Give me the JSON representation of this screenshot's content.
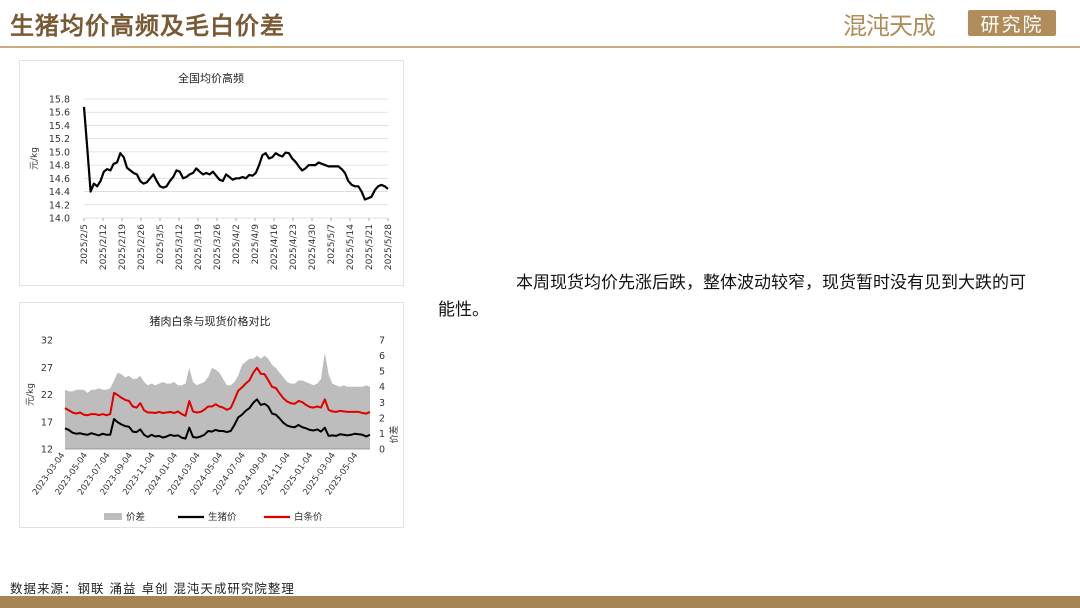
{
  "page": {
    "title": "生猪均价高频及毛白价差",
    "logo_text": "混沌天成",
    "logo_box": "研究院",
    "description": "本周现货均价先涨后跌，整体波动较窄，现货暂时没有见到大跌的可能性。",
    "source": "数据来源：钢联 涌益 卓创 混沌天成研究院整理",
    "colors": {
      "brand": "#a78453",
      "title": "#7a5a35",
      "spread": "#bdbdbd",
      "hog": "#000000",
      "carcass": "#e00000"
    }
  },
  "chart_data": [
    {
      "type": "line",
      "title": "全国均价高频",
      "ylabel": "元/kg",
      "ylim": [
        14.0,
        15.8
      ],
      "yticks": [
        "15.8",
        "15.6",
        "15.4",
        "15.2",
        "15.0",
        "14.8",
        "14.6",
        "14.4",
        "14.2",
        "14.0"
      ],
      "x_tick_labels": [
        "2025/2/5",
        "2025/2/12",
        "2025/2/19",
        "2025/2/26",
        "2025/3/5",
        "2025/3/12",
        "2025/3/19",
        "2025/3/26",
        "2025/4/2",
        "2025/4/9",
        "2025/4/16",
        "2025/4/23",
        "2025/4/30",
        "2025/5/7",
        "2025/5/14",
        "2025/5/21",
        "2025/5/28"
      ],
      "grid": true,
      "legend": "none",
      "series": [
        {
          "color": "#000000",
          "values": [
            15.68,
            15.05,
            14.4,
            14.52,
            14.48,
            14.56,
            14.7,
            14.74,
            14.72,
            14.82,
            14.84,
            14.98,
            14.92,
            14.76,
            14.72,
            14.68,
            14.66,
            14.56,
            14.52,
            14.54,
            14.6,
            14.66,
            14.56,
            14.48,
            14.46,
            14.48,
            14.56,
            14.62,
            14.72,
            14.7,
            14.6,
            14.62,
            14.66,
            14.68,
            14.75,
            14.7,
            14.66,
            14.68,
            14.66,
            14.7,
            14.64,
            14.58,
            14.56,
            14.66,
            14.62,
            14.58,
            14.6,
            14.6,
            14.62,
            14.6,
            14.65,
            14.64,
            14.68,
            14.8,
            14.95,
            14.98,
            14.9,
            14.92,
            14.98,
            14.95,
            14.93,
            14.99,
            14.98,
            14.9,
            14.85,
            14.78,
            14.72,
            14.75,
            14.8,
            14.8,
            14.8,
            14.84,
            14.82,
            14.8,
            14.78,
            14.78,
            14.78,
            14.78,
            14.74,
            14.68,
            14.56,
            14.5,
            14.48,
            14.48,
            14.4,
            14.28,
            14.3,
            14.32,
            14.42,
            14.48,
            14.5,
            14.48,
            14.44
          ]
        }
      ]
    },
    {
      "type": "area",
      "title": "猪肉白条与现货价格对比",
      "ylabel": "元/kg",
      "y2label": "价差",
      "ylim": [
        12,
        32
      ],
      "y2lim": [
        0,
        7
      ],
      "yticks": [
        "32",
        "27",
        "22",
        "17",
        "12"
      ],
      "y2ticks": [
        "7",
        "6",
        "5",
        "4",
        "3",
        "2",
        "1",
        "0"
      ],
      "x_tick_labels": [
        "2023-03-04",
        "2023-05-04",
        "2023-07-04",
        "2023-09-04",
        "2023-11-04",
        "2024-01-04",
        "2024-03-04",
        "2024-05-04",
        "2024-07-04",
        "2024-09-04",
        "2024-11-04",
        "2025-01-04",
        "2025-03-04",
        "2025-05-04"
      ],
      "legend": "bottom",
      "series": [
        {
          "name": "价差",
          "axis": "right",
          "color": "#bdbdbd",
          "values": [
            3.8,
            3.7,
            3.7,
            3.8,
            3.8,
            3.8,
            3.6,
            3.8,
            3.8,
            3.9,
            3.8,
            3.8,
            3.9,
            4.4,
            4.9,
            4.8,
            4.6,
            4.7,
            4.5,
            4.5,
            4.7,
            4.3,
            4.1,
            4.2,
            4.1,
            4.2,
            4.3,
            4.2,
            4.2,
            4.3,
            4.1,
            4.1,
            4.2,
            5.2,
            4.3,
            4.1,
            4.2,
            4.3,
            4.6,
            5.2,
            5.1,
            4.9,
            4.5,
            4.1,
            4.1,
            4.3,
            4.7,
            5.4,
            5.6,
            5.8,
            5.8,
            6.0,
            5.8,
            6.0,
            5.8,
            5.4,
            5.2,
            4.9,
            4.6,
            4.3,
            4.2,
            4.2,
            4.4,
            4.4,
            4.3,
            4.2,
            4.1,
            4.2,
            4.5,
            6.2,
            4.8,
            4.2,
            4.1,
            4.0,
            4.1,
            4.0,
            4.0,
            4.0,
            4.0,
            4.0,
            4.1,
            4.0
          ]
        },
        {
          "name": "生猪价",
          "axis": "left",
          "color": "#000000",
          "values": [
            15.8,
            15.5,
            15.0,
            14.8,
            14.9,
            14.7,
            14.6,
            14.9,
            14.7,
            14.5,
            14.8,
            14.6,
            14.6,
            17.5,
            16.9,
            16.5,
            16.2,
            16.1,
            15.2,
            15.1,
            15.6,
            14.6,
            14.2,
            14.6,
            14.3,
            14.4,
            14.1,
            14.3,
            14.6,
            14.4,
            14.5,
            14.1,
            13.9,
            15.9,
            14.2,
            14.1,
            14.3,
            14.6,
            15.3,
            15.2,
            15.5,
            15.3,
            15.3,
            15.1,
            15.3,
            16.4,
            17.8,
            18.3,
            19.0,
            19.5,
            20.5,
            21.1,
            20.1,
            20.3,
            19.8,
            18.5,
            18.3,
            17.6,
            16.8,
            16.3,
            16.1,
            16.0,
            16.4,
            16.0,
            15.8,
            15.5,
            15.4,
            15.6,
            15.2,
            15.9,
            14.4,
            14.5,
            14.4,
            14.7,
            14.6,
            14.5,
            14.6,
            14.8,
            14.7,
            14.6,
            14.3,
            14.6
          ]
        },
        {
          "name": "白条价",
          "axis": "left",
          "color": "#e00000",
          "values": [
            19.5,
            19.1,
            18.7,
            18.5,
            18.7,
            18.3,
            18.2,
            18.4,
            18.4,
            18.2,
            18.4,
            18.2,
            18.4,
            22.3,
            21.9,
            21.4,
            21.0,
            20.8,
            19.8,
            19.6,
            20.4,
            19.1,
            18.7,
            18.7,
            18.6,
            18.8,
            18.6,
            18.7,
            18.8,
            18.6,
            18.9,
            18.4,
            18.1,
            20.8,
            18.9,
            18.7,
            18.8,
            19.2,
            19.8,
            19.8,
            20.2,
            19.8,
            19.6,
            19.2,
            19.5,
            21.0,
            22.7,
            23.3,
            24.0,
            24.6,
            26.0,
            26.9,
            25.8,
            25.7,
            24.6,
            23.4,
            23.2,
            22.2,
            21.3,
            20.7,
            20.4,
            20.3,
            20.8,
            20.6,
            20.1,
            19.7,
            19.6,
            19.8,
            19.6,
            21.1,
            19.2,
            18.9,
            18.8,
            19.0,
            18.9,
            18.8,
            18.8,
            18.8,
            18.8,
            18.6,
            18.5,
            18.8
          ]
        }
      ]
    }
  ]
}
